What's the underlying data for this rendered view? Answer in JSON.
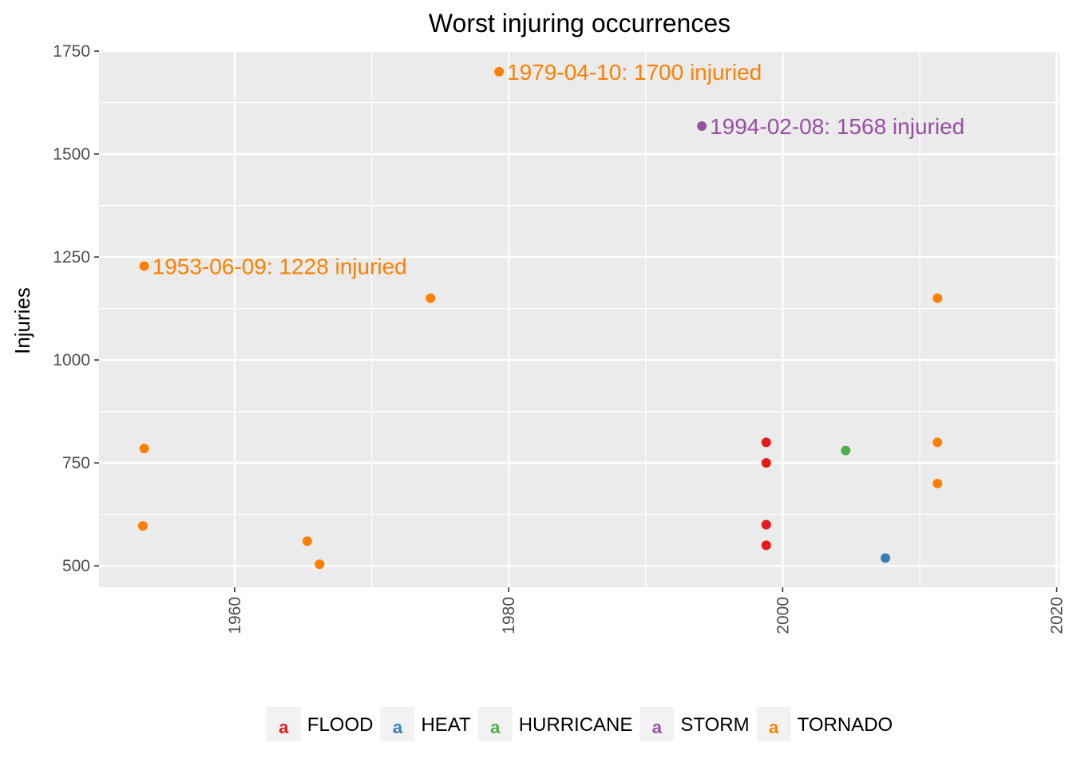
{
  "chart_data": {
    "type": "scatter",
    "title": "Worst injuring occurrences",
    "xlabel": "",
    "ylabel": "Injuries",
    "x_axis_kind": "year",
    "xlim": [
      1950.1,
      2020.2
    ],
    "ylim": [
      448,
      1752
    ],
    "x_ticks": [
      1960,
      1980,
      2000,
      2020
    ],
    "x_tick_labels": [
      "1960",
      "1980",
      "2000",
      "2020"
    ],
    "y_ticks": [
      500,
      750,
      1000,
      1250,
      1500,
      1750
    ],
    "y_tick_labels": [
      "500",
      "750",
      "1000",
      "1250",
      "1500",
      "1750"
    ],
    "grid": true,
    "legend_position": "bottom",
    "legend_key_glyph": "a",
    "series": [
      {
        "name": "FLOOD",
        "color": "#E41A1C",
        "points": [
          {
            "x": 1998.8,
            "y": 800
          },
          {
            "x": 1998.8,
            "y": 750
          },
          {
            "x": 1998.8,
            "y": 600
          },
          {
            "x": 1998.8,
            "y": 550
          }
        ]
      },
      {
        "name": "HEAT",
        "color": "#377EB8",
        "points": [
          {
            "x": 2007.5,
            "y": 519
          }
        ]
      },
      {
        "name": "HURRICANE",
        "color": "#4DAF4A",
        "points": [
          {
            "x": 2004.6,
            "y": 780
          }
        ]
      },
      {
        "name": "STORM",
        "color": "#984EA3",
        "points": [
          {
            "x": 1994.1,
            "y": 1568
          }
        ]
      },
      {
        "name": "TORNADO",
        "color": "#FF7F00",
        "points": [
          {
            "x": 1953.4,
            "y": 1228
          },
          {
            "x": 1953.4,
            "y": 785
          },
          {
            "x": 1953.3,
            "y": 597
          },
          {
            "x": 1965.3,
            "y": 560
          },
          {
            "x": 1966.2,
            "y": 504
          },
          {
            "x": 1974.3,
            "y": 1150
          },
          {
            "x": 1979.3,
            "y": 1700
          },
          {
            "x": 2011.3,
            "y": 1150
          },
          {
            "x": 2011.3,
            "y": 800
          },
          {
            "x": 2011.3,
            "y": 700
          }
        ]
      }
    ],
    "annotations": [
      {
        "x": 1979.3,
        "y": 1700,
        "text": "1979-04-10: 1700 injuried",
        "color": "#FF7F00"
      },
      {
        "x": 1994.1,
        "y": 1568,
        "text": "1994-02-08: 1568 injuried",
        "color": "#984EA3"
      },
      {
        "x": 1953.4,
        "y": 1228,
        "text": "1953-06-09: 1228 injuried",
        "color": "#FF7F00"
      }
    ]
  }
}
